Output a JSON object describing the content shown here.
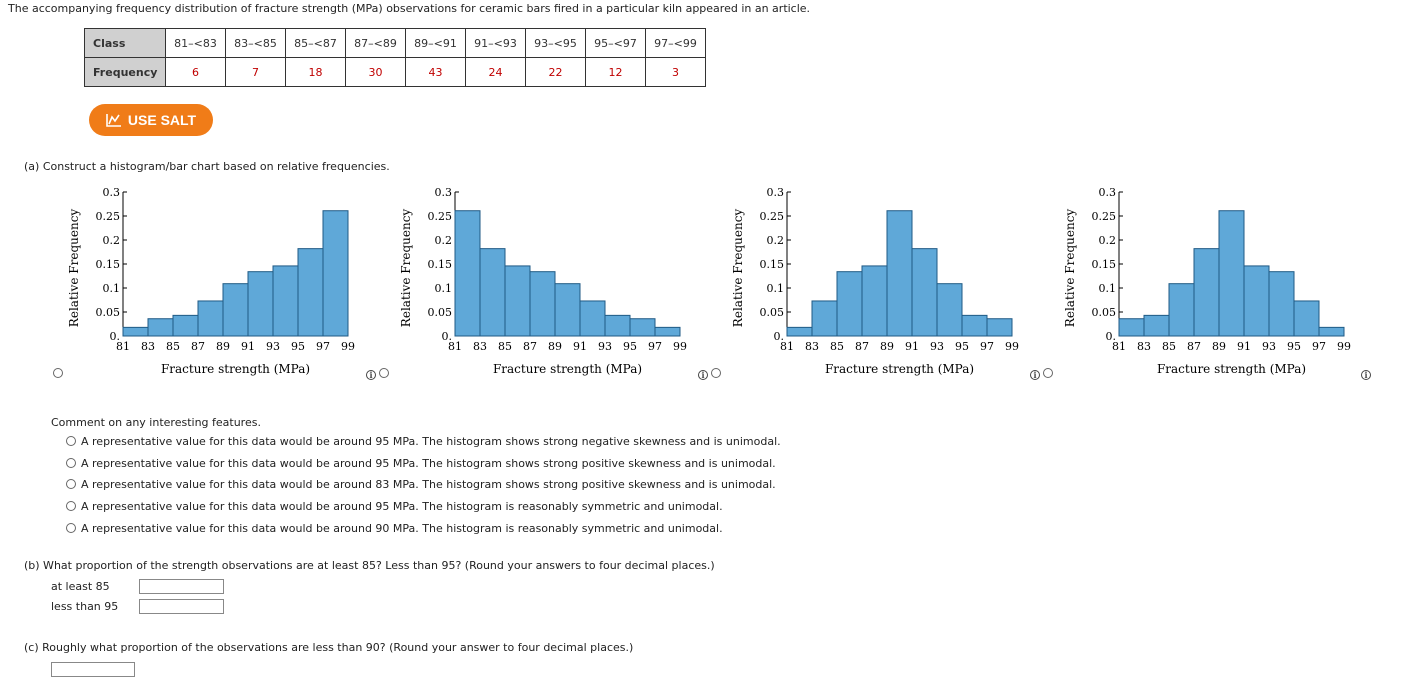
{
  "intro": "The accompanying frequency distribution of fracture strength (MPa) observations for ceramic bars fired in a particular kiln appeared in an article.",
  "table": {
    "class_header": "Class",
    "frequency_header": "Frequency",
    "classes": [
      "81–<83",
      "83–<85",
      "85–<87",
      "87–<89",
      "89–<91",
      "91–<93",
      "93–<95",
      "95–<97",
      "97–<99"
    ],
    "frequencies": [
      "6",
      "7",
      "18",
      "30",
      "43",
      "24",
      "22",
      "12",
      "3"
    ]
  },
  "salt_button": {
    "label": "USE SALT",
    "icon": "chart-line-icon"
  },
  "part_a": {
    "prompt": "(a)  Construct a histogram/bar chart based on relative frequencies.",
    "histogram_options": [
      {
        "ylabel": "Relative Frequency",
        "xlabel": "Fracture strength (MPa)"
      },
      {
        "ylabel": "Relative Frequency",
        "xlabel": "Fracture strength (MPa)"
      },
      {
        "ylabel": "Relative Frequency",
        "xlabel": "Fracture strength (MPa)"
      },
      {
        "ylabel": "Relative Frequency",
        "xlabel": "Fracture strength (MPa)"
      }
    ],
    "comment_prompt": "Comment on any interesting features.",
    "comment_options": [
      "A representative value for this data would be around 95 MPa. The histogram shows strong negative skewness and is unimodal.",
      "A representative value for this data would be around 95 MPa. The histogram shows strong positive skewness and is unimodal.",
      "A representative value for this data would be around 83 MPa. The histogram shows strong positive skewness and is unimodal.",
      "A representative value for this data would be around 95 MPa. The histogram is reasonably symmetric and unimodal.",
      "A representative value for this data would be around 90 MPa. The histogram is reasonably symmetric and unimodal."
    ]
  },
  "part_b": {
    "prompt": "(b)  What proportion of the strength observations are at least 85? Less than 95? (Round your answers to four decimal places.)",
    "at_least_label": "at least 85",
    "less_than_label": "less than 95",
    "at_least_value": "",
    "less_than_value": ""
  },
  "part_c": {
    "prompt": "(c)  Roughly what proportion of the observations are less than 90? (Round your answer to four decimal places.)",
    "value": ""
  },
  "colors": {
    "bar_fill": "#5fa8d8",
    "bar_stroke": "#1f5a85",
    "salt_button": "#f07c18",
    "freq_values": "#c00000"
  },
  "chart_data": [
    {
      "type": "bar",
      "categories": [
        "81-83",
        "83-85",
        "85-87",
        "87-89",
        "89-91",
        "91-93",
        "93-95",
        "95-97",
        "97-99"
      ],
      "values": [
        0.018,
        0.036,
        0.043,
        0.073,
        0.109,
        0.134,
        0.146,
        0.182,
        0.261
      ],
      "xticks": [
        "81",
        "83",
        "85",
        "87",
        "89",
        "91",
        "93",
        "95",
        "97",
        "99"
      ],
      "yticks": [
        "0.",
        "0.05",
        "0.1",
        "0.15",
        "0.2",
        "0.25",
        "0.3"
      ],
      "ylim": [
        0,
        0.3
      ],
      "ylabel": "Relative Frequency",
      "xlabel": "Fracture strength (MPa)"
    },
    {
      "type": "bar",
      "categories": [
        "81-83",
        "83-85",
        "85-87",
        "87-89",
        "89-91",
        "91-93",
        "93-95",
        "95-97",
        "97-99"
      ],
      "values": [
        0.261,
        0.182,
        0.146,
        0.134,
        0.109,
        0.073,
        0.043,
        0.036,
        0.018
      ],
      "xticks": [
        "81",
        "83",
        "85",
        "87",
        "89",
        "91",
        "93",
        "95",
        "97",
        "99"
      ],
      "yticks": [
        "0.",
        "0.05",
        "0.1",
        "0.15",
        "0.2",
        "0.25",
        "0.3"
      ],
      "ylim": [
        0,
        0.3
      ],
      "ylabel": "Relative Frequency",
      "xlabel": "Fracture strength (MPa)"
    },
    {
      "type": "bar",
      "categories": [
        "81-83",
        "83-85",
        "85-87",
        "87-89",
        "89-91",
        "91-93",
        "93-95",
        "95-97",
        "97-99"
      ],
      "values": [
        0.018,
        0.073,
        0.134,
        0.146,
        0.261,
        0.182,
        0.109,
        0.043,
        0.036
      ],
      "xticks": [
        "81",
        "83",
        "85",
        "87",
        "89",
        "91",
        "93",
        "95",
        "97",
        "99"
      ],
      "yticks": [
        "0.",
        "0.05",
        "0.1",
        "0.15",
        "0.2",
        "0.25",
        "0.3"
      ],
      "ylim": [
        0,
        0.3
      ],
      "ylabel": "Relative Frequency",
      "xlabel": "Fracture strength (MPa)"
    },
    {
      "type": "bar",
      "categories": [
        "81-83",
        "83-85",
        "85-87",
        "87-89",
        "89-91",
        "91-93",
        "93-95",
        "95-97",
        "97-99"
      ],
      "values": [
        0.036,
        0.043,
        0.109,
        0.182,
        0.261,
        0.146,
        0.134,
        0.073,
        0.018
      ],
      "xticks": [
        "81",
        "83",
        "85",
        "87",
        "89",
        "91",
        "93",
        "95",
        "97",
        "99"
      ],
      "yticks": [
        "0.",
        "0.05",
        "0.1",
        "0.15",
        "0.2",
        "0.25",
        "0.3"
      ],
      "ylim": [
        0,
        0.3
      ],
      "ylabel": "Relative Frequency",
      "xlabel": "Fracture strength (MPa)"
    }
  ]
}
